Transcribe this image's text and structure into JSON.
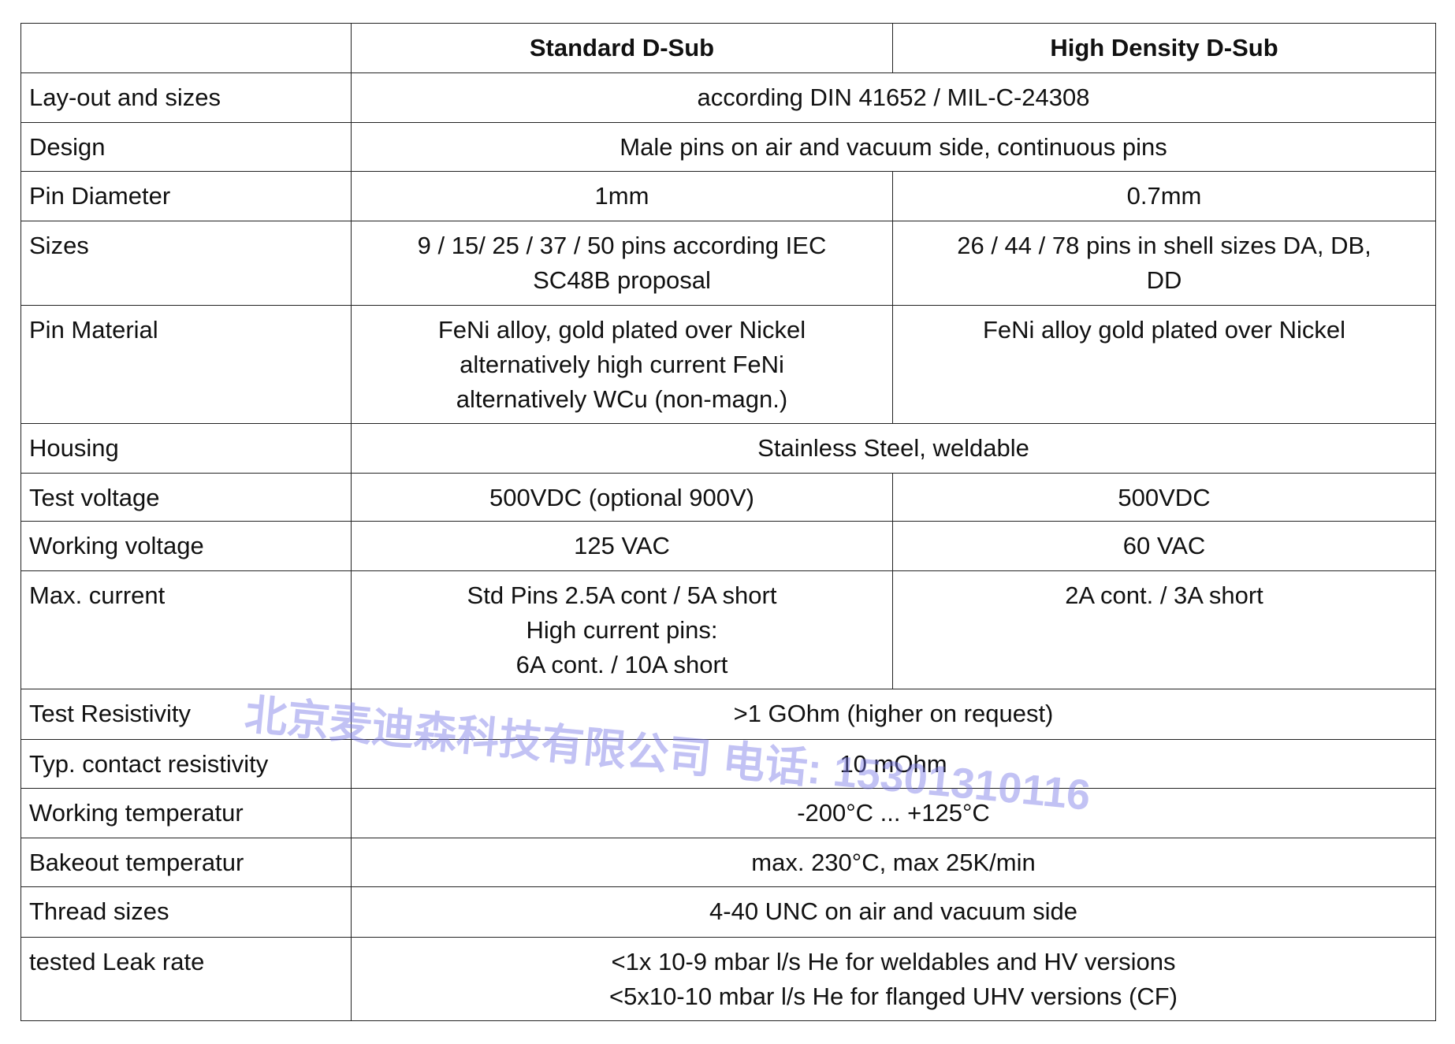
{
  "header": {
    "col1": "",
    "col2": "Standard D-Sub",
    "col3": "High Density D-Sub"
  },
  "rows": [
    {
      "label": "Lay-out and sizes",
      "span": "according DIN 41652 / MIL-C-24308",
      "h": 63
    },
    {
      "label": "Design",
      "span": "Male pins on air and vacuum side, continuous pins",
      "h": 62
    },
    {
      "label": "Pin Diameter",
      "std": [
        "1mm"
      ],
      "hd": [
        "0.7mm"
      ],
      "h": 63
    },
    {
      "label": "Sizes",
      "std": [
        "9 / 15/ 25 / 37 / 50 pins according IEC",
        "SC48B proposal"
      ],
      "hd": [
        "26 / 44 / 78 pins in shell sizes DA, DB,",
        "DD"
      ],
      "h": 107
    },
    {
      "label": "Pin Material",
      "std": [
        "FeNi alloy, gold plated over Nickel",
        "alternatively high current FeNi",
        "alternatively WCu (non-magn.)"
      ],
      "hd": [
        "FeNi alloy  gold plated over Nickel"
      ],
      "h": 150
    },
    {
      "label": "Housing",
      "span": "Stainless Steel, weldable",
      "h": 63
    },
    {
      "label": "Test voltage",
      "std": [
        "500VDC (optional 900V)"
      ],
      "hd": [
        "500VDC"
      ],
      "h": 61
    },
    {
      "label": "Working voltage",
      "std": [
        "125 VAC"
      ],
      "hd": [
        "60 VAC"
      ],
      "h": 63
    },
    {
      "label": "Max. current",
      "std": [
        "Std Pins 2.5A cont / 5A short",
        "High current pins:",
        "6A cont. / 10A short"
      ],
      "hd": [
        "2A cont. / 3A short"
      ],
      "h": 150
    },
    {
      "label": "Test Resistivity",
      "span": ">1 GOhm (higher on request)",
      "h": 64
    },
    {
      "label": "Typ. contact resistivity",
      "span": "10 mOhm",
      "h": 62
    },
    {
      "label": "Working temperatur",
      "span": "-200°C ... +125°C",
      "h": 63
    },
    {
      "label": "Bakeout temperatur",
      "span": "max. 230°C, max 25K/min",
      "h": 62
    },
    {
      "label": "Thread sizes",
      "span": "4-40 UNC on air and vacuum side",
      "h": 64
    },
    {
      "label": "tested Leak rate",
      "span": [
        "<1x 10-9 mbar l/s He for weldables and HV versions",
        "<5x10-10 mbar l/s He for flanged UHV versions (CF)"
      ],
      "h": 106
    }
  ],
  "watermark": "北京麦迪森科技有限公司 电话: 15301310116"
}
